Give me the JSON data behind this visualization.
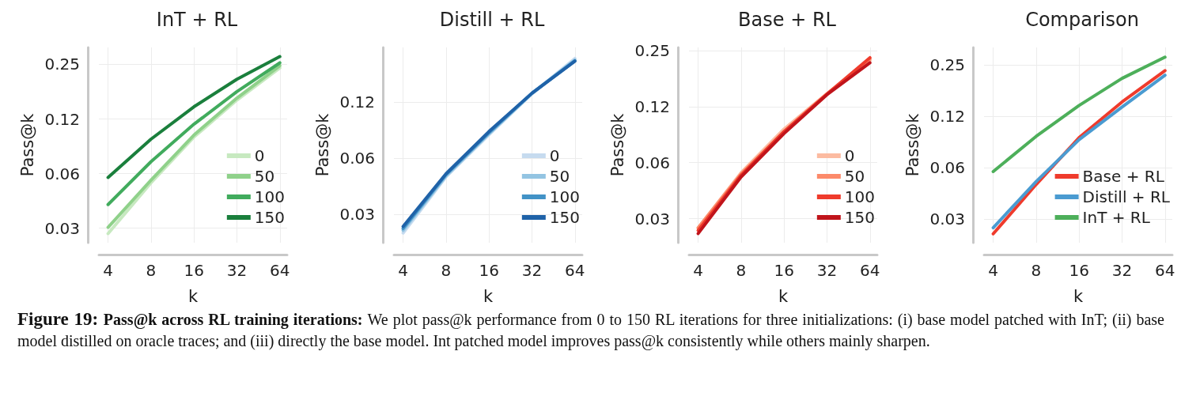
{
  "chart_data": [
    {
      "type": "line",
      "title": "InT + RL",
      "xlabel": "k",
      "ylabel": "Pass@k",
      "x": [
        4,
        8,
        16,
        32,
        64
      ],
      "log": "xy",
      "xlim": [
        3.45,
        72
      ],
      "xticks": [
        4,
        8,
        16,
        32,
        64
      ],
      "ylim": [
        0.026,
        0.31
      ],
      "yticks": [
        {
          "value": 0.03125,
          "label": "0.03"
        },
        {
          "value": 0.0625,
          "label": "0.06"
        },
        {
          "value": 0.125,
          "label": "0.12"
        },
        {
          "value": 0.25,
          "label": "0.25"
        }
      ],
      "grid": true,
      "legend": "bottom right",
      "marker": "none",
      "line_style": "solid",
      "series": [
        {
          "name": "0",
          "color": "#c7e9c0",
          "values": [
            0.0292,
            0.0556,
            0.0994,
            0.159,
            0.239
          ]
        },
        {
          "name": "50",
          "color": "#8fd18a",
          "values": [
            0.0316,
            0.0575,
            0.102,
            0.163,
            0.246
          ]
        },
        {
          "name": "100",
          "color": "#41ab5d",
          "values": [
            0.0422,
            0.0727,
            0.117,
            0.177,
            0.255
          ]
        },
        {
          "name": "150",
          "color": "#1a7f3c",
          "values": [
            0.0595,
            0.0968,
            0.146,
            0.207,
            0.276
          ]
        }
      ],
      "annotations": [
        "Figure 19:",
        "Pass@k across RL training iterations:",
        "We plot pass@k performance from 0 to 150 RL iterations for three initializations: (i) base model patched with InT; (ii) base model distilled on oracle traces; and (iii) directly the base model. Int patched model improves pass@k consistently while others mainly sharpen."
      ]
    },
    {
      "type": "line",
      "title": "Distill + RL",
      "xlabel": "k",
      "ylabel": "Pass@k",
      "x": [
        4,
        8,
        16,
        32,
        64
      ],
      "log": "xy",
      "xlim": [
        3.45,
        72
      ],
      "xticks": [
        4,
        8,
        16,
        32,
        64
      ],
      "ylim": [
        0.0221,
        0.244
      ],
      "yticks": [
        {
          "value": 0.03125,
          "label": "0.03"
        },
        {
          "value": 0.0625,
          "label": "0.06"
        },
        {
          "value": 0.125,
          "label": "0.12"
        }
      ],
      "grid": true,
      "legend": "bottom right",
      "marker": "none",
      "line_style": "solid",
      "series": [
        {
          "name": "0",
          "color": "#c6dbef",
          "values": [
            0.0249,
            0.0497,
            0.0834,
            0.138,
            0.213
          ]
        },
        {
          "name": "50",
          "color": "#93c4e2",
          "values": [
            0.0257,
            0.0503,
            0.0845,
            0.1385,
            0.209
          ]
        },
        {
          "name": "100",
          "color": "#4292c6",
          "values": [
            0.0263,
            0.0511,
            0.0856,
            0.139,
            0.207
          ]
        },
        {
          "name": "150",
          "color": "#1f62a8",
          "values": [
            0.027,
            0.0516,
            0.0868,
            0.139,
            0.206
          ]
        }
      ]
    },
    {
      "type": "line",
      "title": "Base + RL",
      "xlabel": "k",
      "ylabel": "Pass@k",
      "x": [
        4,
        8,
        16,
        32,
        64
      ],
      "log": "xy",
      "xlim": [
        3.45,
        72
      ],
      "xticks": [
        4,
        8,
        16,
        32,
        64
      ],
      "ylim": [
        0.0232,
        0.26
      ],
      "yticks": [
        {
          "value": 0.03125,
          "label": "0.03"
        },
        {
          "value": 0.0625,
          "label": "0.06"
        },
        {
          "value": 0.125,
          "label": "0.12"
        },
        {
          "value": 0.25,
          "label": "0.25"
        }
      ],
      "grid": true,
      "legend": "bottom right",
      "marker": "none",
      "line_style": "solid",
      "series": [
        {
          "name": "0",
          "color": "#fcbba1",
          "values": [
            0.0279,
            0.0552,
            0.0947,
            0.147,
            0.221
          ]
        },
        {
          "name": "50",
          "color": "#fc8a6a",
          "values": [
            0.0279,
            0.0544,
            0.0918,
            0.146,
            0.225
          ]
        },
        {
          "name": "100",
          "color": "#ef3b2c",
          "values": [
            0.027,
            0.0535,
            0.0918,
            0.146,
            0.229
          ]
        },
        {
          "name": "150",
          "color": "#c0141b",
          "values": [
            0.026,
            0.0524,
            0.0896,
            0.145,
            0.215
          ]
        }
      ]
    },
    {
      "type": "line",
      "title": "Comparison",
      "xlabel": "k",
      "ylabel": "Pass@k",
      "x": [
        4,
        8,
        16,
        32,
        64
      ],
      "log": "xy",
      "xlim": [
        3.45,
        72
      ],
      "xticks": [
        4,
        8,
        16,
        32,
        64
      ],
      "ylim": [
        0.0228,
        0.317
      ],
      "yticks": [
        {
          "value": 0.03125,
          "label": "0.03"
        },
        {
          "value": 0.0625,
          "label": "0.06"
        },
        {
          "value": 0.125,
          "label": "0.12"
        },
        {
          "value": 0.25,
          "label": "0.25"
        }
      ],
      "grid": true,
      "legend": "bottom right",
      "marker": "none",
      "line_style": "solid",
      "series": [
        {
          "name": "Base + RL",
          "color": "#ef3b2c",
          "values": [
            0.0257,
            0.05,
            0.094,
            0.152,
            0.232
          ]
        },
        {
          "name": "Distill + RL",
          "color": "#4a9bd1",
          "values": [
            0.0279,
            0.052,
            0.0915,
            0.142,
            0.218
          ]
        },
        {
          "name": "InT + RL",
          "color": "#4daf5a",
          "values": [
            0.0595,
            0.0956,
            0.145,
            0.209,
            0.278
          ]
        }
      ]
    }
  ]
}
